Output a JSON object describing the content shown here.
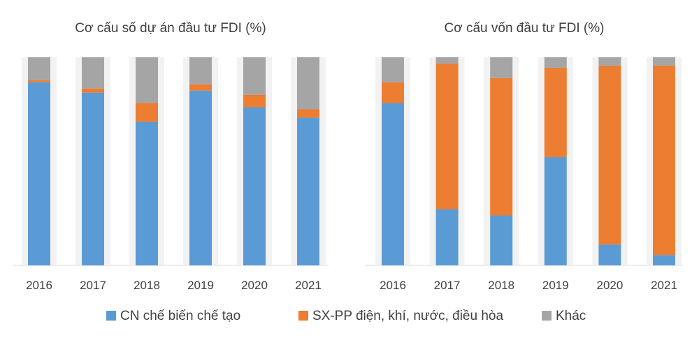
{
  "chart_data": [
    {
      "type": "bar",
      "stacked": true,
      "percent": true,
      "title": "Cơ cấu số dự án đầu tư FDI (%)",
      "xlabel": "",
      "ylabel": "",
      "ylim": [
        0,
        100
      ],
      "categories": [
        "2016",
        "2017",
        "2018",
        "2019",
        "2020",
        "2021"
      ],
      "series": [
        {
          "name": "CN chế biến chế tạo",
          "values": [
            88,
            83,
            69,
            84,
            76,
            71
          ]
        },
        {
          "name": "SX-PP điện, khí, nước, điều hòa",
          "values": [
            1,
            2,
            9,
            3,
            6,
            4
          ]
        },
        {
          "name": "Khác",
          "values": [
            11,
            15,
            22,
            13,
            18,
            25
          ]
        }
      ],
      "grid": false,
      "legend": "bottom"
    },
    {
      "type": "bar",
      "stacked": true,
      "percent": true,
      "title": "Cơ cấu vốn đầu tư FDI (%)",
      "xlabel": "",
      "ylabel": "",
      "ylim": [
        0,
        100
      ],
      "categories": [
        "2016",
        "2017",
        "2018",
        "2019",
        "2020",
        "2021"
      ],
      "series": [
        {
          "name": "CN chế biến chế tạo",
          "values": [
            78,
            27,
            24,
            52,
            10,
            5
          ]
        },
        {
          "name": "SX-PP điện, khí, nước, điều hòa",
          "values": [
            10,
            70,
            66,
            43,
            86,
            91
          ]
        },
        {
          "name": "Khác",
          "values": [
            12,
            3,
            10,
            5,
            4,
            4
          ]
        }
      ],
      "grid": false,
      "legend": "bottom"
    }
  ],
  "legend": [
    {
      "name": "CN chế biến chế tạo",
      "color": "#5b9bd5"
    },
    {
      "name": "SX-PP điện, khí, nước, điều hòa",
      "color": "#ed7d31"
    },
    {
      "name": "Khác",
      "color": "#a5a5a5"
    }
  ],
  "colors": [
    "#5b9bd5",
    "#ed7d31",
    "#a5a5a5"
  ]
}
